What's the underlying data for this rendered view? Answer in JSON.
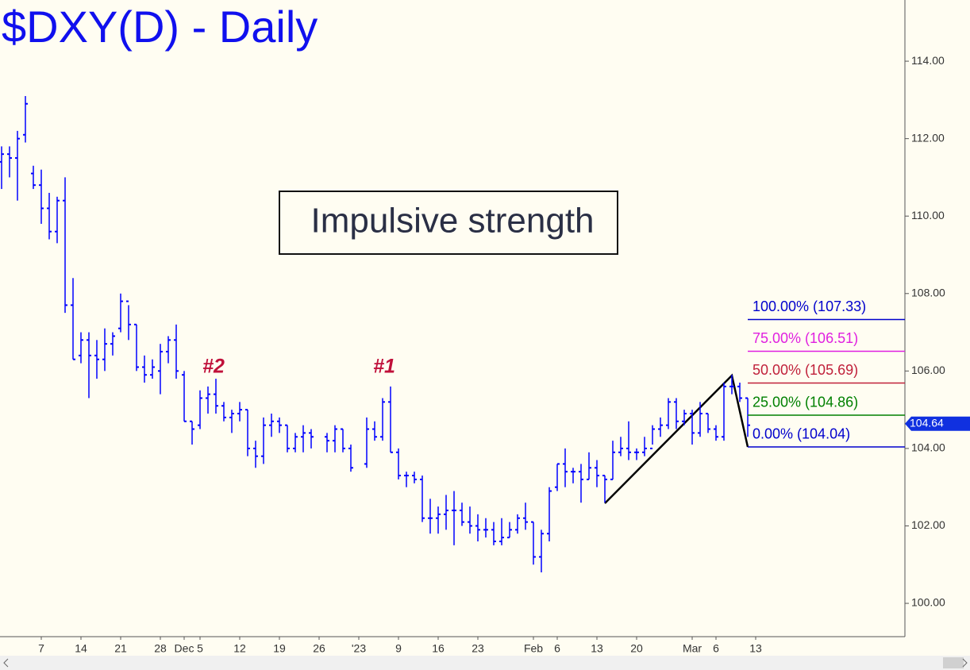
{
  "chart_data": {
    "type": "ohlc",
    "title": "$DXY(D) - Daily",
    "color": "#0000ff",
    "categories": [
      null,
      null,
      null,
      null,
      null,
      "7",
      null,
      null,
      null,
      null,
      "14",
      null,
      null,
      null,
      null,
      "21",
      null,
      null,
      null,
      null,
      "28",
      null,
      null,
      "Dec",
      null,
      "5",
      null,
      null,
      null,
      null,
      "12",
      null,
      null,
      null,
      null,
      "19",
      null,
      null,
      null,
      null,
      "26",
      null,
      null,
      null,
      null,
      "'23",
      null,
      null,
      null,
      null,
      "9",
      null,
      null,
      null,
      null,
      "16",
      null,
      null,
      null,
      null,
      "23",
      null,
      null,
      null,
      null,
      null,
      null,
      "Feb",
      null,
      null,
      "6",
      null,
      null,
      null,
      null,
      "13",
      null,
      null,
      null,
      null,
      "20",
      null,
      null,
      null,
      null,
      null,
      null,
      "Mar",
      null,
      null,
      "6",
      null,
      null,
      null,
      null,
      "13"
    ],
    "open": [
      111.4,
      111.6,
      111.5,
      112.1,
      111.1,
      110.8,
      110.2,
      109.6,
      110.4,
      107.7,
      106.4,
      106.8,
      106.4,
      106.3,
      106.7,
      107.1,
      107.8,
      107.2,
      106.1,
      105.9,
      106.0,
      106.5,
      106.8,
      105.9,
      104.7,
      104.6,
      105.3,
      105.4,
      105.1,
      104.8,
      104.9,
      105.0,
      104.0,
      103.8,
      104.6,
      104.7,
      104.6,
      104.0,
      104.3,
      104.4,
      null,
      104.3,
      104.2,
      104.5,
      104.0,
      null,
      103.6,
      104.5,
      104.3,
      105.2,
      103.9,
      103.3,
      103.3,
      103.2,
      102.2,
      102.2,
      102.3,
      102.4,
      102.4,
      102.1,
      102.0,
      101.9,
      101.9,
      101.6,
      101.7,
      101.9,
      102.2,
      102.1,
      101.2,
      101.8,
      103.0,
      103.6,
      103.4,
      103.4,
      103.2,
      103.5,
      103.3,
      103.2,
      103.9,
      104.0,
      103.9,
      103.9,
      104.0,
      104.5,
      104.6,
      105.2,
      104.7,
      104.9,
      104.4,
      104.9,
      104.5,
      104.3,
      105.6,
      105.6,
      105.3,
      null
    ],
    "high": [
      111.8,
      111.8,
      112.2,
      113.1,
      111.3,
      111.2,
      110.6,
      110.5,
      111.0,
      108.4,
      107.0,
      107.0,
      106.8,
      107.1,
      107.0,
      108.0,
      107.7,
      107.2,
      106.4,
      106.3,
      106.7,
      106.9,
      107.2,
      106.0,
      104.7,
      105.5,
      105.6,
      105.8,
      105.2,
      105.0,
      105.2,
      105.0,
      104.2,
      104.8,
      104.9,
      104.8,
      104.6,
      104.4,
      104.6,
      104.5,
      null,
      104.4,
      104.6,
      104.5,
      104.1,
      null,
      104.8,
      104.7,
      105.3,
      105.6,
      104.0,
      103.4,
      103.4,
      103.3,
      102.7,
      102.5,
      102.8,
      102.9,
      102.6,
      102.5,
      102.3,
      102.2,
      102.1,
      102.2,
      102.1,
      102.3,
      102.6,
      102.1,
      101.9,
      103.0,
      103.6,
      104.0,
      103.5,
      103.6,
      103.9,
      103.7,
      103.3,
      104.2,
      104.3,
      104.7,
      104.0,
      104.3,
      104.6,
      104.8,
      105.3,
      105.3,
      105.0,
      105.0,
      105.2,
      104.9,
      104.6,
      105.7,
      105.9,
      105.7,
      105.3,
      null
    ],
    "low": [
      110.7,
      111.0,
      110.4,
      111.9,
      110.7,
      109.8,
      109.4,
      109.3,
      107.5,
      106.3,
      106.2,
      105.3,
      105.8,
      106.0,
      106.4,
      107.0,
      106.8,
      106.0,
      105.7,
      105.8,
      105.4,
      106.2,
      105.8,
      104.7,
      104.1,
      104.5,
      104.9,
      104.9,
      104.7,
      104.4,
      104.7,
      103.8,
      103.5,
      103.6,
      104.3,
      104.4,
      103.9,
      103.9,
      103.9,
      104.0,
      null,
      103.9,
      103.9,
      103.9,
      103.4,
      null,
      103.5,
      104.2,
      104.2,
      103.9,
      103.2,
      103.0,
      103.1,
      102.1,
      101.8,
      101.8,
      101.9,
      101.5,
      102.0,
      101.8,
      101.6,
      101.7,
      101.5,
      101.5,
      101.7,
      101.8,
      101.9,
      101.0,
      100.8,
      101.6,
      102.9,
      103.0,
      103.1,
      102.6,
      103.2,
      103.0,
      102.6,
      103.2,
      103.8,
      103.7,
      103.7,
      103.8,
      104.1,
      104.3,
      104.5,
      104.5,
      104.6,
      104.1,
      104.3,
      104.4,
      104.2,
      104.2,
      105.4,
      105.2,
      104.3,
      null
    ],
    "close": [
      111.6,
      111.5,
      112.0,
      112.9,
      110.8,
      110.2,
      109.6,
      110.4,
      107.7,
      106.3,
      106.8,
      106.4,
      106.3,
      106.7,
      106.9,
      107.8,
      107.2,
      106.1,
      105.9,
      106.1,
      106.5,
      106.8,
      106.0,
      104.7,
      104.5,
      105.3,
      105.4,
      105.1,
      104.8,
      104.9,
      105.0,
      104.0,
      103.8,
      104.6,
      104.7,
      104.6,
      104.0,
      104.3,
      104.4,
      104.3,
      null,
      104.2,
      104.5,
      104.0,
      103.5,
      null,
      104.5,
      104.3,
      105.2,
      103.9,
      103.3,
      103.3,
      103.2,
      102.2,
      102.2,
      102.3,
      102.4,
      102.4,
      102.1,
      102.0,
      101.9,
      101.9,
      101.6,
      101.7,
      101.9,
      102.2,
      102.1,
      101.2,
      101.8,
      102.9,
      103.6,
      103.4,
      103.4,
      103.2,
      103.5,
      103.3,
      103.2,
      103.9,
      104.0,
      103.9,
      103.9,
      104.0,
      104.5,
      104.6,
      105.2,
      104.7,
      104.9,
      104.4,
      104.9,
      104.5,
      104.3,
      105.6,
      105.6,
      105.3,
      104.6,
      null
    ],
    "ylim": [
      99.14,
      115.58
    ],
    "yticks": [
      {
        "value": 100,
        "label": "100.00"
      },
      {
        "value": 102,
        "label": "102.00"
      },
      {
        "value": 104,
        "label": "104.00"
      },
      {
        "value": 106,
        "label": "106.00"
      },
      {
        "value": 108,
        "label": "108.00"
      },
      {
        "value": 110,
        "label": "110.00"
      },
      {
        "value": 112,
        "label": "112.00"
      },
      {
        "value": 114,
        "label": "114.00"
      }
    ],
    "last_price": 104.64,
    "fib_levels": [
      {
        "label": "100.00% (107.33)",
        "value": 107.33,
        "color": "#0000cc"
      },
      {
        "label": "75.00% (106.51)",
        "value": 106.51,
        "color": "#e020e0"
      },
      {
        "label": "50.00% (105.69)",
        "value": 105.69,
        "color": "#c0203a"
      },
      {
        "label": "25.00% (104.86)",
        "value": 104.86,
        "color": "#008000"
      },
      {
        "label": "0.00% (104.04)",
        "value": 104.04,
        "color": "#0000cc"
      }
    ],
    "annotations": {
      "box": "Impulsive strength",
      "peak_2": "#2",
      "peak_1": "#1"
    }
  }
}
